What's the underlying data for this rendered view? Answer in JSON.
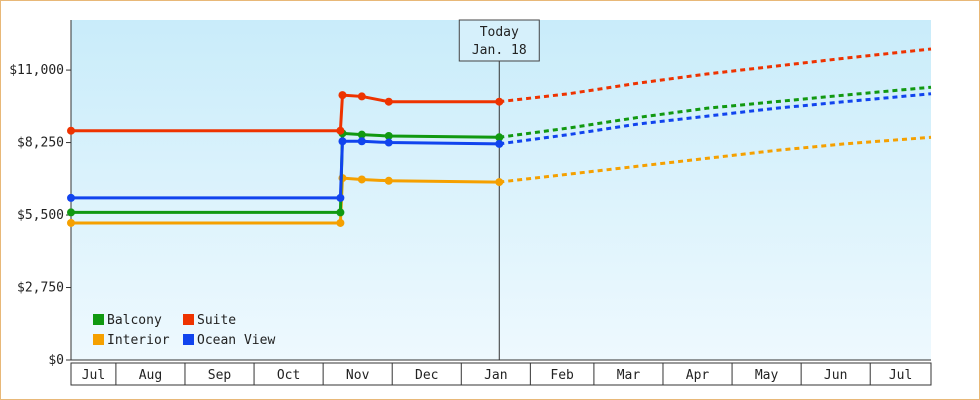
{
  "chart_data": {
    "type": "line",
    "title": "",
    "xlabel": "",
    "ylabel": "",
    "x_range": [
      "Jul",
      "Jul"
    ],
    "ylim": [
      0,
      12900
    ],
    "y_ticks": [
      {
        "value": 0,
        "label": "$0"
      },
      {
        "value": 2750,
        "label": "$2,750"
      },
      {
        "value": 5500,
        "label": "$5,500"
      },
      {
        "value": 8250,
        "label": "$8,250"
      },
      {
        "value": 11000,
        "label": "$11,000"
      }
    ],
    "months": [
      {
        "label": "Jul",
        "start": 0,
        "end": 0.65
      },
      {
        "label": "Aug",
        "start": 0.65,
        "end": 1.65
      },
      {
        "label": "Sep",
        "start": 1.65,
        "end": 2.65
      },
      {
        "label": "Oct",
        "start": 2.65,
        "end": 3.65
      },
      {
        "label": "Nov",
        "start": 3.65,
        "end": 4.65
      },
      {
        "label": "Dec",
        "start": 4.65,
        "end": 5.65
      },
      {
        "label": "Jan",
        "start": 5.65,
        "end": 6.65
      },
      {
        "label": "Feb",
        "start": 6.65,
        "end": 7.57
      },
      {
        "label": "Mar",
        "start": 7.57,
        "end": 8.57
      },
      {
        "label": "Apr",
        "start": 8.57,
        "end": 9.57
      },
      {
        "label": "May",
        "start": 9.57,
        "end": 10.57
      },
      {
        "label": "Jun",
        "start": 10.57,
        "end": 11.57
      },
      {
        "label": "Jul",
        "start": 11.57,
        "end": 12.45
      }
    ],
    "x_domain": [
      0,
      12.45
    ],
    "today": {
      "line1": "Today",
      "line2": "Jan. 18",
      "x": 6.2
    },
    "grid": false,
    "legend_position": "bottom-left",
    "series": [
      {
        "name": "Balcony",
        "color": "#119911",
        "points": [
          [
            0,
            5600
          ],
          [
            3.9,
            5600
          ],
          [
            3.93,
            8600
          ],
          [
            4.21,
            8550
          ],
          [
            4.6,
            8500
          ],
          [
            6.2,
            8450
          ]
        ],
        "forecast": [
          [
            6.2,
            8450
          ],
          [
            7.2,
            8800
          ],
          [
            8.2,
            9200
          ],
          [
            9.2,
            9550
          ],
          [
            10.2,
            9800
          ],
          [
            11.2,
            10050
          ],
          [
            12.45,
            10350
          ]
        ]
      },
      {
        "name": "Suite",
        "color": "#ee3300",
        "points": [
          [
            0,
            8700
          ],
          [
            3.9,
            8700
          ],
          [
            3.93,
            10050
          ],
          [
            4.21,
            10000
          ],
          [
            4.6,
            9800
          ],
          [
            6.2,
            9800
          ]
        ],
        "forecast": [
          [
            6.2,
            9800
          ],
          [
            7.2,
            10100
          ],
          [
            8.2,
            10500
          ],
          [
            9.2,
            10850
          ],
          [
            10.2,
            11150
          ],
          [
            11.2,
            11450
          ],
          [
            12.45,
            11800
          ]
        ]
      },
      {
        "name": "Interior",
        "color": "#f5a000",
        "points": [
          [
            0,
            5200
          ],
          [
            3.9,
            5200
          ],
          [
            3.93,
            6900
          ],
          [
            4.21,
            6850
          ],
          [
            4.6,
            6800
          ],
          [
            6.2,
            6750
          ]
        ],
        "forecast": [
          [
            6.2,
            6750
          ],
          [
            7.2,
            7050
          ],
          [
            8.2,
            7350
          ],
          [
            9.2,
            7650
          ],
          [
            10.2,
            7950
          ],
          [
            11.2,
            8200
          ],
          [
            12.45,
            8450
          ]
        ]
      },
      {
        "name": "Ocean View",
        "color": "#1144ee",
        "points": [
          [
            0,
            6150
          ],
          [
            3.9,
            6150
          ],
          [
            3.93,
            8300
          ],
          [
            4.21,
            8300
          ],
          [
            4.6,
            8250
          ],
          [
            6.2,
            8200
          ]
        ],
        "forecast": [
          [
            6.2,
            8200
          ],
          [
            7.2,
            8550
          ],
          [
            8.2,
            8950
          ],
          [
            9.2,
            9250
          ],
          [
            10.2,
            9550
          ],
          [
            11.2,
            9800
          ],
          [
            12.45,
            10100
          ]
        ]
      }
    ]
  },
  "legend": [
    {
      "name": "Balcony",
      "color": "#119911"
    },
    {
      "name": "Suite",
      "color": "#ee3300"
    },
    {
      "name": "Interior",
      "color": "#f5a000"
    },
    {
      "name": "Ocean View",
      "color": "#1144ee"
    }
  ]
}
